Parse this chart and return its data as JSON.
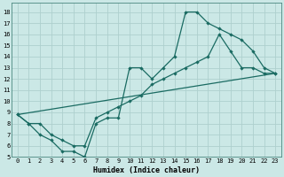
{
  "xlabel": "Humidex (Indice chaleur)",
  "xlim": [
    -0.5,
    23.5
  ],
  "ylim": [
    5,
    18.8
  ],
  "yticks": [
    5,
    6,
    7,
    8,
    9,
    10,
    11,
    12,
    13,
    14,
    15,
    16,
    17,
    18
  ],
  "xticks": [
    0,
    1,
    2,
    3,
    4,
    5,
    6,
    7,
    8,
    9,
    10,
    11,
    12,
    13,
    14,
    15,
    16,
    17,
    18,
    19,
    20,
    21,
    22,
    23
  ],
  "bg_color": "#cbe8e6",
  "grid_color": "#aed0ce",
  "line_color": "#1a6b62",
  "line1_x": [
    0,
    1,
    2,
    3,
    4,
    5,
    6,
    7,
    8,
    9,
    10,
    11,
    12,
    13,
    14,
    15,
    16,
    17,
    18,
    19,
    20,
    21,
    22,
    23
  ],
  "line1_y": [
    8.8,
    8.0,
    7.0,
    6.5,
    5.5,
    5.5,
    5.0,
    8.0,
    8.5,
    8.5,
    13.0,
    13.0,
    12.0,
    13.0,
    14.0,
    18.0,
    18.0,
    17.0,
    16.5,
    16.0,
    15.5,
    14.5,
    13.0,
    12.5
  ],
  "line2_x": [
    0,
    1,
    2,
    3,
    4,
    5,
    6,
    7,
    8,
    9,
    10,
    11,
    12,
    13,
    14,
    15,
    16,
    17,
    18,
    19,
    20,
    21,
    22,
    23
  ],
  "line2_y": [
    8.8,
    8.0,
    8.0,
    7.0,
    6.5,
    6.0,
    6.0,
    8.5,
    9.0,
    9.5,
    10.0,
    10.5,
    11.5,
    12.0,
    12.5,
    13.0,
    13.5,
    14.0,
    16.0,
    14.5,
    13.0,
    13.0,
    12.5,
    12.5
  ],
  "line3_x": [
    0,
    23
  ],
  "line3_y": [
    8.8,
    12.5
  ]
}
